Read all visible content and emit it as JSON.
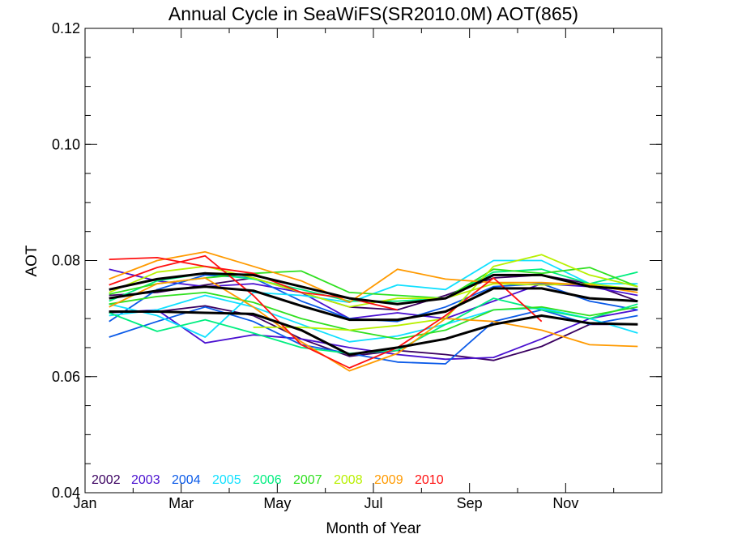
{
  "chart_data": {
    "type": "line",
    "title": "Annual Cycle in SeaWiFS(SR2010.0M) AOT(865)",
    "xlabel": "Month of Year",
    "ylabel": "AOT",
    "xlim": [
      0,
      12
    ],
    "ylim": [
      0.04,
      0.12
    ],
    "x_ticks": [
      {
        "value": 0,
        "label": "Jan"
      },
      {
        "value": 2,
        "label": "Mar"
      },
      {
        "value": 4,
        "label": "May"
      },
      {
        "value": 6,
        "label": "Jul"
      },
      {
        "value": 8,
        "label": "Sep"
      },
      {
        "value": 10,
        "label": "Nov"
      }
    ],
    "y_ticks": [
      {
        "value": 0.04,
        "label": "0.04"
      },
      {
        "value": 0.06,
        "label": "0.06"
      },
      {
        "value": 0.08,
        "label": "0.08"
      },
      {
        "value": 0.1,
        "label": "0.10"
      },
      {
        "value": 0.12,
        "label": "0.12"
      }
    ],
    "legend_position": "bottom-left",
    "series": [
      {
        "name": "2002",
        "color": "#3a0060",
        "x": [
          0.5,
          1.5,
          2.5,
          3.5,
          4.5,
          5.5,
          6.5,
          7.5,
          8.5,
          9.5,
          10.5,
          11.5
        ],
        "y": [
          0.0712,
          0.0712,
          0.0722,
          0.0705,
          0.0665,
          0.0635,
          0.0645,
          0.0638,
          0.0628,
          0.0652,
          0.069,
          0.069
        ]
      },
      {
        "name": "2002",
        "color": "#3a0060",
        "x": [
          0.5,
          1.5,
          2.5,
          3.5,
          4.5,
          5.5,
          6.5,
          7.5,
          8.5,
          9.5,
          10.5,
          11.5
        ],
        "y": [
          0.074,
          0.0745,
          0.0758,
          0.077,
          0.0745,
          0.072,
          0.0715,
          0.074,
          0.077,
          0.0775,
          0.076,
          0.073
        ]
      },
      {
        "name": "2003",
        "color": "#4a10d0",
        "x": [
          0.5,
          1.5,
          2.5,
          3.5,
          4.5,
          5.5,
          6.5,
          7.5,
          8.5,
          9.5,
          10.5,
          11.5
        ],
        "y": [
          0.0785,
          0.0765,
          0.0755,
          0.076,
          0.0745,
          0.07,
          0.071,
          0.07,
          0.073,
          0.076,
          0.0755,
          0.074
        ]
      },
      {
        "name": "2003",
        "color": "#4a10d0",
        "x": [
          0.5,
          1.5,
          2.5,
          3.5,
          4.5,
          5.5,
          6.5,
          7.5,
          8.5,
          9.5,
          10.5,
          11.5
        ],
        "y": [
          0.071,
          0.0715,
          0.0658,
          0.0672,
          0.0665,
          0.065,
          0.0638,
          0.063,
          0.0633,
          0.0665,
          0.07,
          0.0715
        ]
      },
      {
        "name": "2004",
        "color": "#0a5ae8",
        "x": [
          0.5,
          1.5,
          2.5,
          3.5,
          4.5,
          5.5,
          6.5,
          7.5,
          8.5,
          9.5,
          10.5,
          11.5
        ],
        "y": [
          0.0668,
          0.0695,
          0.072,
          0.0695,
          0.0655,
          0.064,
          0.0625,
          0.0622,
          0.0695,
          0.0715,
          0.069,
          0.0705
        ]
      },
      {
        "name": "2004",
        "color": "#0a5ae8",
        "x": [
          0.5,
          1.5,
          2.5,
          3.5,
          4.5,
          5.5,
          6.5,
          7.5,
          8.5,
          9.5,
          10.5,
          11.5
        ],
        "y": [
          0.0695,
          0.075,
          0.0775,
          0.077,
          0.073,
          0.07,
          0.0695,
          0.072,
          0.0755,
          0.076,
          0.073,
          0.0715
        ]
      },
      {
        "name": "2005",
        "color": "#10e0ff",
        "x": [
          0.5,
          1.5,
          2.5,
          3.5,
          4.5,
          5.5,
          6.5,
          7.5,
          8.5,
          9.5,
          10.5,
          11.5
        ],
        "y": [
          0.0725,
          0.0705,
          0.0668,
          0.0745,
          0.074,
          0.0728,
          0.0758,
          0.075,
          0.08,
          0.08,
          0.076,
          0.076
        ]
      },
      {
        "name": "2005",
        "color": "#10e0ff",
        "x": [
          0.5,
          1.5,
          2.5,
          3.5,
          4.5,
          5.5,
          6.5,
          7.5,
          8.5,
          9.5,
          10.5,
          11.5
        ],
        "y": [
          0.0705,
          0.0715,
          0.074,
          0.072,
          0.069,
          0.066,
          0.067,
          0.069,
          0.0715,
          0.0718,
          0.07,
          0.0675
        ]
      },
      {
        "name": "2006",
        "color": "#00ee80",
        "x": [
          0.5,
          1.5,
          2.5,
          3.5,
          4.5,
          5.5,
          6.5,
          7.5,
          8.5,
          9.5,
          10.5,
          11.5
        ],
        "y": [
          0.071,
          0.0678,
          0.0698,
          0.0675,
          0.065,
          0.064,
          0.0645,
          0.069,
          0.0735,
          0.0715,
          0.07,
          0.0725
        ]
      },
      {
        "name": "2006",
        "color": "#00ee80",
        "x": [
          0.5,
          1.5,
          2.5,
          3.5,
          4.5,
          5.5,
          6.5,
          7.5,
          8.5,
          9.5,
          10.5,
          11.5
        ],
        "y": [
          0.073,
          0.0765,
          0.0778,
          0.0768,
          0.075,
          0.073,
          0.073,
          0.0735,
          0.078,
          0.0785,
          0.076,
          0.078
        ]
      },
      {
        "name": "2007",
        "color": "#30e020",
        "x": [
          0.5,
          1.5,
          2.5,
          3.5,
          4.5,
          5.5,
          6.5,
          7.5,
          8.5,
          9.5,
          10.5,
          11.5
        ],
        "y": [
          0.0742,
          0.076,
          0.077,
          0.0778,
          0.0782,
          0.0745,
          0.074,
          0.0735,
          0.0785,
          0.0778,
          0.0788,
          0.0755
        ]
      },
      {
        "name": "2007",
        "color": "#30e020",
        "x": [
          0.5,
          1.5,
          2.5,
          3.5,
          4.5,
          5.5,
          6.5,
          7.5,
          8.5,
          9.5,
          10.5,
          11.5
        ],
        "y": [
          0.0725,
          0.0738,
          0.0745,
          0.0728,
          0.07,
          0.068,
          0.0665,
          0.068,
          0.0715,
          0.072,
          0.0705,
          0.072
        ]
      },
      {
        "name": "2008",
        "color": "#b8f000",
        "x": [
          3.5,
          4.5,
          5.5,
          6.5,
          7.5,
          8.5,
          9.5,
          10.5,
          11.5
        ],
        "y": [
          0.0685,
          0.0685,
          0.068,
          0.0688,
          0.07,
          0.079,
          0.081,
          0.0775,
          0.0755
        ]
      },
      {
        "name": "2008",
        "color": "#b8f000",
        "x": [
          0.5,
          1.5,
          2.5,
          3.5,
          4.5,
          5.5,
          6.5,
          7.5,
          8.5,
          9.5,
          10.5,
          11.5
        ],
        "y": [
          0.0745,
          0.078,
          0.079,
          0.077,
          0.0745,
          0.072,
          0.0735,
          0.0735,
          0.076,
          0.0758,
          0.076,
          0.075
        ]
      },
      {
        "name": "2009",
        "color": "#ff9a00",
        "x": [
          0.5,
          1.5,
          2.5,
          3.5,
          4.5,
          5.5,
          6.5,
          7.5,
          8.5,
          9.5,
          10.5,
          11.5
        ],
        "y": [
          0.0768,
          0.08,
          0.0815,
          0.079,
          0.0765,
          0.0728,
          0.0785,
          0.0768,
          0.0762,
          0.0762,
          0.0758,
          0.0745
        ]
      },
      {
        "name": "2009",
        "color": "#ff9a00",
        "x": [
          0.5,
          1.5,
          2.5,
          3.5,
          4.5,
          5.5,
          6.5,
          7.5,
          8.5,
          9.5,
          10.5,
          11.5
        ],
        "y": [
          0.072,
          0.076,
          0.077,
          0.072,
          0.066,
          0.061,
          0.064,
          0.07,
          0.0695,
          0.068,
          0.0655,
          0.0652
        ]
      },
      {
        "name": "2010",
        "color": "#ff1010",
        "x": [
          0.5,
          1.5,
          2.5,
          3.5,
          4.5,
          5.5,
          6.5
        ],
        "y": [
          0.0802,
          0.0805,
          0.079,
          0.0778,
          0.0745,
          0.0735,
          0.0715
        ]
      },
      {
        "name": "2010",
        "color": "#ff1010",
        "x": [
          0.5,
          1.5,
          2.5,
          3.5,
          4.5,
          5.5,
          6.5,
          7.5,
          8.5,
          9.5
        ],
        "y": [
          0.0758,
          0.0788,
          0.0808,
          0.074,
          0.0655,
          0.0615,
          0.065,
          0.0705,
          0.077,
          0.0695
        ]
      },
      {
        "name": "",
        "color": "#000000",
        "x": [
          0.5,
          1.5,
          2.5,
          3.5,
          4.5,
          5.5,
          6.5,
          7.5,
          8.5,
          9.5,
          10.5,
          11.5
        ],
        "y": [
          0.075,
          0.0768,
          0.0778,
          0.0775,
          0.0755,
          0.0735,
          0.0725,
          0.0735,
          0.0775,
          0.0775,
          0.0755,
          0.075
        ]
      },
      {
        "name": "",
        "color": "#000000",
        "x": [
          0.5,
          1.5,
          2.5,
          3.5,
          4.5,
          5.5,
          6.5,
          7.5,
          8.5,
          9.5,
          10.5,
          11.5
        ],
        "y": [
          0.0735,
          0.0748,
          0.0755,
          0.0748,
          0.0722,
          0.0698,
          0.0698,
          0.0712,
          0.0752,
          0.0752,
          0.0735,
          0.073
        ]
      },
      {
        "name": "",
        "color": "#000000",
        "x": [
          0.5,
          1.5,
          2.5,
          3.5,
          4.5,
          5.5,
          6.5,
          7.5,
          8.5,
          9.5,
          10.5,
          11.5
        ],
        "y": [
          0.0712,
          0.0712,
          0.071,
          0.0708,
          0.068,
          0.0638,
          0.065,
          0.0665,
          0.069,
          0.0705,
          0.0692,
          0.069
        ]
      }
    ],
    "legend": [
      {
        "label": "2002",
        "color": "#3a0060"
      },
      {
        "label": "2003",
        "color": "#4a10d0"
      },
      {
        "label": "2004",
        "color": "#0a5ae8"
      },
      {
        "label": "2005",
        "color": "#10e0ff"
      },
      {
        "label": "2006",
        "color": "#00ee80"
      },
      {
        "label": "2007",
        "color": "#30e020"
      },
      {
        "label": "2008",
        "color": "#b8f000"
      },
      {
        "label": "2009",
        "color": "#ff9a00"
      },
      {
        "label": "2010",
        "color": "#ff1010"
      }
    ]
  }
}
